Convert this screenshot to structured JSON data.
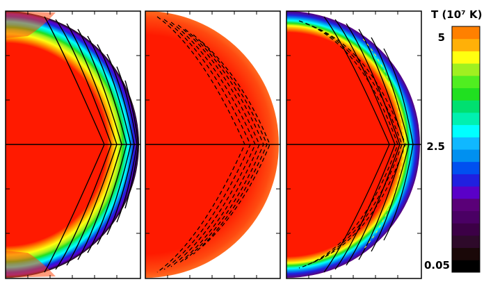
{
  "colorbar": {
    "title": "T (10⁷ K)",
    "ticks": [
      "5",
      "2.5",
      "0.05"
    ],
    "colors": [
      "#000000",
      "#1a0808",
      "#2e0a2a",
      "#3c0046",
      "#4a0064",
      "#5a0078",
      "#5a00c8",
      "#2020e0",
      "#0050f0",
      "#0090f0",
      "#10b8ff",
      "#00ffff",
      "#00f0b0",
      "#00e070",
      "#20e020",
      "#50ee20",
      "#a0f020",
      "#ffff10",
      "#ffb008",
      "#ff8000"
    ]
  },
  "panels": [
    {
      "name": "left",
      "overlay": "solid-contours"
    },
    {
      "name": "middle",
      "overlay": "dashed-contours"
    },
    {
      "name": "right",
      "overlay": "solid-and-dashed-contours"
    }
  ],
  "colors": {
    "core": "#ff1a00",
    "limb": "#ff5a1e",
    "rim": "#ffe030"
  }
}
